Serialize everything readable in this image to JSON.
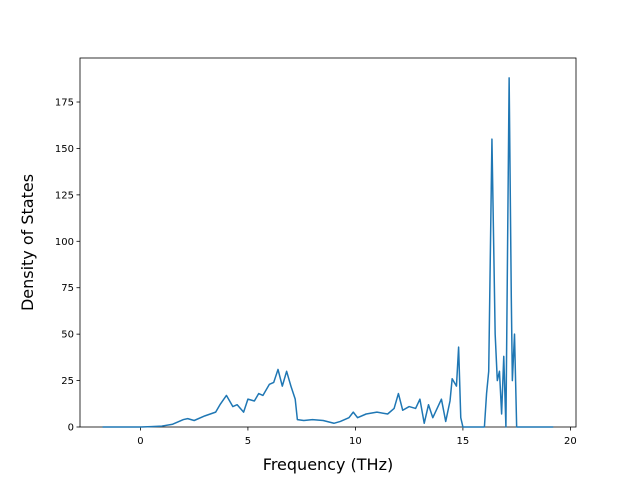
{
  "chart_data": {
    "type": "line",
    "x_label": "Frequency (THz)",
    "y_label": "Density of States",
    "xlim": [
      -2.81,
      20.26
    ],
    "ylim": [
      0,
      198.7
    ],
    "xticks": [
      0,
      5,
      10,
      15,
      20
    ],
    "yticks": [
      0,
      25,
      50,
      75,
      100,
      125,
      150,
      175
    ],
    "x": [
      -1.76,
      0,
      0.5,
      1,
      1.5,
      2,
      2.2,
      2.5,
      3,
      3.5,
      3.7,
      4,
      4.3,
      4.5,
      4.8,
      5,
      5.3,
      5.5,
      5.7,
      6,
      6.2,
      6.4,
      6.6,
      6.8,
      7,
      7.2,
      7.3,
      7.6,
      8,
      8.5,
      9,
      9.3,
      9.7,
      9.9,
      10.1,
      10.5,
      11,
      11.5,
      11.8,
      12,
      12.2,
      12.5,
      12.8,
      13,
      13.2,
      13.4,
      13.6,
      13.8,
      14,
      14.2,
      14.4,
      14.5,
      14.7,
      14.8,
      14.9,
      15,
      16,
      16.1,
      16.2,
      16.35,
      16.5,
      16.6,
      16.7,
      16.8,
      16.9,
      17,
      17.15,
      17.25,
      17.3,
      17.4,
      17.5,
      19.2
    ],
    "series": [
      {
        "color": "#1f77b4",
        "values": [
          0,
          0,
          0.2,
          0.5,
          1.5,
          4,
          4.5,
          3.5,
          6,
          8,
          12,
          17,
          11,
          12,
          8,
          15,
          14,
          18,
          17,
          23,
          24,
          31,
          22,
          30,
          22,
          15,
          4,
          3.5,
          4,
          3.5,
          2,
          3,
          5,
          8,
          5,
          7,
          8,
          7,
          10,
          18,
          9,
          11,
          10,
          15,
          2,
          12,
          5,
          10,
          15,
          3,
          14,
          26,
          22,
          43,
          5,
          0,
          0,
          18,
          30,
          155,
          50,
          25,
          30,
          7,
          38,
          0,
          188,
          70,
          25,
          50,
          0,
          0
        ]
      }
    ]
  }
}
